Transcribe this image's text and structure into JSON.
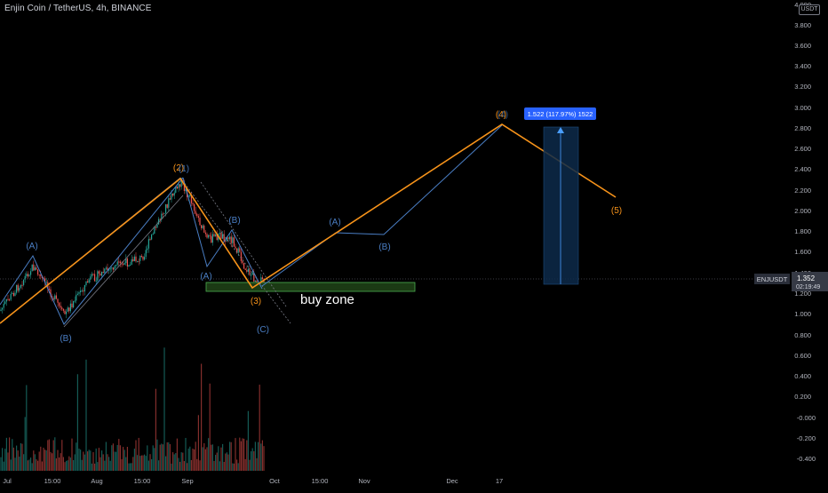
{
  "header": {
    "symbol_title": "Enjin Coin / TetherUS, 4h, BINANCE",
    "currency_badge": "USDT"
  },
  "price_axis": {
    "labels": [
      "4.000",
      "3.800",
      "3.600",
      "3.400",
      "3.200",
      "3.000",
      "2.800",
      "2.600",
      "2.400",
      "2.200",
      "2.000",
      "1.800",
      "1.600",
      "1.400",
      "1.200",
      "1.000",
      "0.800",
      "0.600",
      "0.400",
      "0.200",
      "-0.000",
      "-0.200",
      "-0.400"
    ],
    "ticker_label": "ENJUSDT",
    "last_price": "1.352",
    "countdown": "02:19:49",
    "ticker_color": "#2a2e39",
    "last_price_color": "#363a45"
  },
  "time_axis": {
    "labels": [
      "Jul",
      "15:00",
      "Aug",
      "15:00",
      "Sep",
      "Oct",
      "15:00",
      "Nov",
      "Dec",
      "17"
    ]
  },
  "annotations": {
    "buy_zone_label": "buy zone",
    "measure_label": "1.522 (117.97%) 1522",
    "wave_labels": [
      {
        "text": "(A)",
        "color": "#4a7ec4"
      },
      {
        "text": "(B)",
        "color": "#4a7ec4"
      },
      {
        "text": "(2)",
        "color": "#f7931a"
      },
      {
        "text": "(1)",
        "color": "#4a7ec4"
      },
      {
        "text": "(B)",
        "color": "#4a7ec4"
      },
      {
        "text": "(A)",
        "color": "#4a7ec4"
      },
      {
        "text": "(3)",
        "color": "#f7931a"
      },
      {
        "text": "(C)",
        "color": "#4a7ec4"
      },
      {
        "text": "(A)",
        "color": "#4a7ec4"
      },
      {
        "text": "(B)",
        "color": "#4a7ec4"
      },
      {
        "text": "(4)",
        "color": "#f7931a"
      },
      {
        "text": "(4)",
        "color": "#4a7ec4"
      },
      {
        "text": "(5)",
        "color": "#f7931a"
      }
    ]
  },
  "colors": {
    "background": "#000000",
    "up_candle": "#26a69a",
    "down_candle": "#ef5350",
    "impulse_line": "#f7931a",
    "correction_line": "#4a7ec4",
    "buy_zone_fill": "#1b3a14",
    "buy_zone_border": "#4caf50",
    "measure_fill": "#0d2a4a",
    "measure_label_bg": "#2962ff"
  },
  "chart_data": {
    "type": "candlestick",
    "symbol": "ENJUSDT",
    "interval": "4h",
    "exchange": "BINANCE",
    "ylim": [
      -0.45,
      4.05
    ],
    "last_price": 1.352,
    "price_series": {
      "dates": [
        "Jul",
        "15:00",
        "Aug",
        "15:00",
        "Sep",
        "Oct"
      ],
      "close": [
        1.05,
        1.45,
        1.35,
        1.8,
        2.1,
        1.3
      ]
    },
    "wave_path_primary": [
      {
        "label": "(2)",
        "price": 2.3
      },
      {
        "label": "(3)",
        "price": 1.2
      },
      {
        "label": "(4)",
        "price": 2.83
      },
      {
        "label": "(5)",
        "price": 2.13
      }
    ],
    "wave_path_correction": [
      {
        "label": "(A)",
        "price": 1.8
      },
      {
        "label": "(B)",
        "price": 1.77
      },
      {
        "label": "(4)",
        "price": 2.83
      }
    ],
    "buy_zone": {
      "from_price": 1.2,
      "to_price": 1.29
    },
    "measure": {
      "label": "1.522 (117.97%) 1522",
      "from_price": 1.29,
      "to_price": 2.81
    }
  }
}
